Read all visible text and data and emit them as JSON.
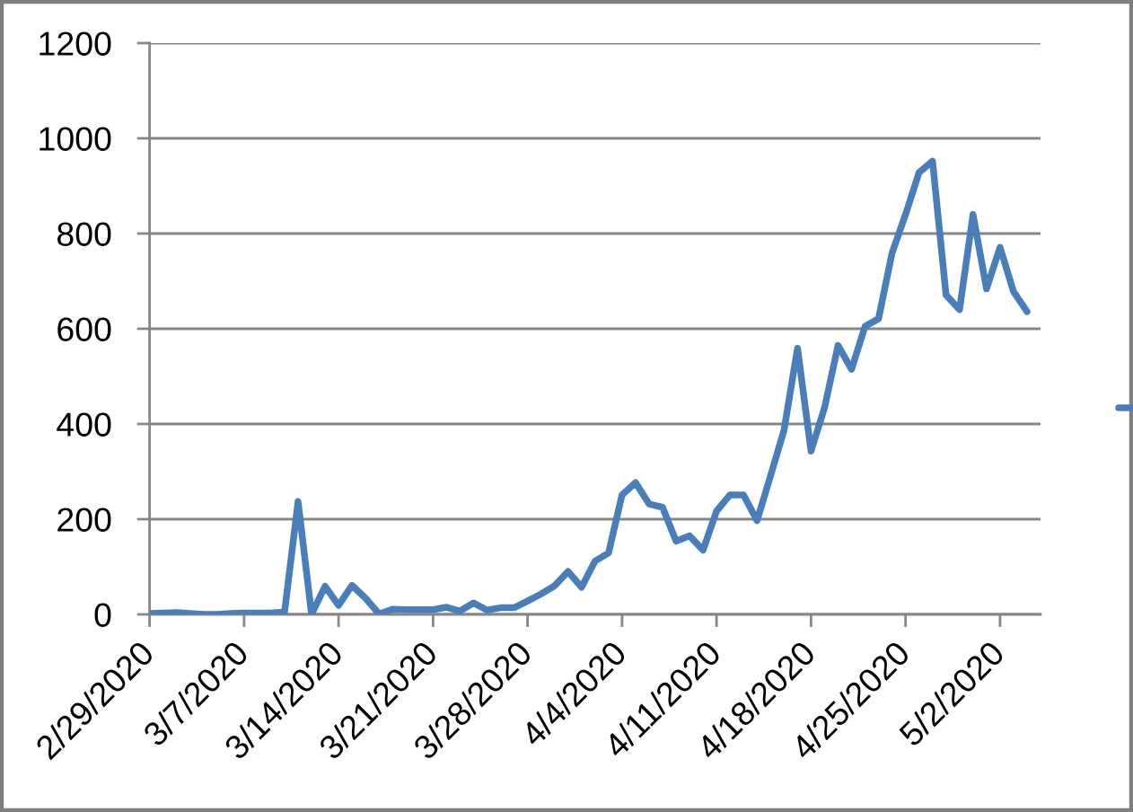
{
  "chart_data": {
    "type": "line",
    "x": [
      "2020-02-29",
      "2020-03-01",
      "2020-03-02",
      "2020-03-03",
      "2020-03-04",
      "2020-03-05",
      "2020-03-06",
      "2020-03-07",
      "2020-03-08",
      "2020-03-09",
      "2020-03-10",
      "2020-03-11",
      "2020-03-12",
      "2020-03-13",
      "2020-03-14",
      "2020-03-15",
      "2020-03-16",
      "2020-03-17",
      "2020-03-18",
      "2020-03-19",
      "2020-03-20",
      "2020-03-21",
      "2020-03-22",
      "2020-03-23",
      "2020-03-24",
      "2020-03-25",
      "2020-03-26",
      "2020-03-27",
      "2020-03-28",
      "2020-03-29",
      "2020-03-30",
      "2020-03-31",
      "2020-04-01",
      "2020-04-02",
      "2020-04-03",
      "2020-04-04",
      "2020-04-05",
      "2020-04-06",
      "2020-04-07",
      "2020-04-08",
      "2020-04-09",
      "2020-04-10",
      "2020-04-11",
      "2020-04-12",
      "2020-04-13",
      "2020-04-14",
      "2020-04-15",
      "2020-04-16",
      "2020-04-17",
      "2020-04-18",
      "2020-04-19",
      "2020-04-20",
      "2020-04-21",
      "2020-04-22",
      "2020-04-23",
      "2020-04-24",
      "2020-04-25",
      "2020-04-26",
      "2020-04-27",
      "2020-04-28",
      "2020-04-29",
      "2020-04-30",
      "2020-05-01",
      "2020-05-02",
      "2020-05-03",
      "2020-05-04"
    ],
    "values": [
      2,
      3,
      4,
      2,
      0,
      0,
      2,
      3,
      3,
      3,
      5,
      237,
      0,
      59,
      19,
      61,
      34,
      1,
      11,
      10,
      10,
      10,
      15,
      7,
      24,
      9,
      14,
      14,
      28,
      43,
      60,
      90,
      57,
      112,
      129,
      251,
      277,
      232,
      225,
      154,
      165,
      135,
      217,
      251,
      251,
      197,
      291,
      387,
      559,
      343,
      434,
      565,
      515,
      605,
      621,
      759,
      840,
      928,
      952,
      671,
      640,
      840,
      684,
      771,
      678,
      636
    ],
    "color": "#4a7ebb",
    "xlim": [
      "2020-02-29",
      "2020-05-05"
    ],
    "xticks": [
      {
        "value": "2020-02-29",
        "label": "2/29/2020"
      },
      {
        "value": "2020-03-07",
        "label": "3/7/2020"
      },
      {
        "value": "2020-03-14",
        "label": "3/14/2020"
      },
      {
        "value": "2020-03-21",
        "label": "3/21/2020"
      },
      {
        "value": "2020-03-28",
        "label": "3/28/2020"
      },
      {
        "value": "2020-04-04",
        "label": "4/4/2020"
      },
      {
        "value": "2020-04-11",
        "label": "4/11/2020"
      },
      {
        "value": "2020-04-18",
        "label": "4/18/2020"
      },
      {
        "value": "2020-04-25",
        "label": "4/25/2020"
      },
      {
        "value": "2020-05-02",
        "label": "5/2/2020"
      }
    ],
    "ylim": [
      0,
      1200
    ],
    "yticks": [
      0,
      200,
      400,
      600,
      800,
      1000,
      1200
    ],
    "grid": "y"
  }
}
